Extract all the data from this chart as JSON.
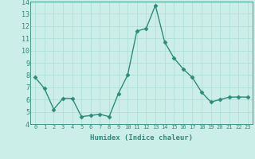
{
  "x": [
    0,
    1,
    2,
    3,
    4,
    5,
    6,
    7,
    8,
    9,
    10,
    11,
    12,
    13,
    14,
    15,
    16,
    17,
    18,
    19,
    20,
    21,
    22,
    23
  ],
  "y": [
    7.8,
    6.9,
    5.2,
    6.1,
    6.1,
    4.6,
    4.7,
    4.8,
    4.6,
    6.5,
    8.0,
    11.6,
    11.8,
    13.7,
    10.7,
    9.4,
    8.5,
    7.8,
    6.6,
    5.8,
    6.0,
    6.2,
    6.2,
    6.2
  ],
  "xlabel": "Humidex (Indice chaleur)",
  "ylim": [
    4,
    14
  ],
  "xlim": [
    -0.5,
    23.5
  ],
  "yticks": [
    4,
    5,
    6,
    7,
    8,
    9,
    10,
    11,
    12,
    13,
    14
  ],
  "xticks": [
    0,
    1,
    2,
    3,
    4,
    5,
    6,
    7,
    8,
    9,
    10,
    11,
    12,
    13,
    14,
    15,
    16,
    17,
    18,
    19,
    20,
    21,
    22,
    23
  ],
  "line_color": "#2e8b7a",
  "marker_color": "#2e8b7a",
  "bg_color": "#cceee8",
  "grid_color": "#aaddd6",
  "xlabel_color": "#2e8b7a",
  "tick_color": "#2e8b7a",
  "xlabel_fontsize": 6.5,
  "tick_fontsize_x": 5.0,
  "tick_fontsize_y": 6.0
}
